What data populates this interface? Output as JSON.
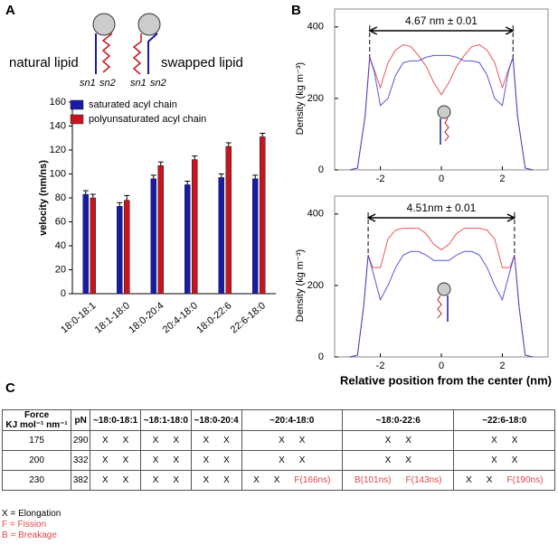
{
  "panels": {
    "a": "A",
    "b": "B",
    "c": "C"
  },
  "lipids": {
    "natural": "natural lipid",
    "swapped": "swapped lipid",
    "tails": [
      "sn1",
      "sn2",
      "sn1",
      "sn2"
    ]
  },
  "chart_data": [
    {
      "type": "bar",
      "y_label": "velocity (nm/ns)",
      "categories": [
        "18:0-18:1",
        "18:1-18:0",
        "18:0-20:4",
        "20:4-18:0",
        "18:0-22:6",
        "22:6-18:0"
      ],
      "series": [
        {
          "name": "saturated acyl chain",
          "color": "#1a1aa8",
          "values": [
            83,
            73,
            96,
            91,
            97,
            96
          ],
          "errors": [
            3,
            3,
            3,
            3,
            3,
            3
          ]
        },
        {
          "name": "polyunsaturated acyl chain",
          "color": "#c8141e",
          "values": [
            80,
            78,
            107,
            112,
            123,
            131
          ],
          "errors": [
            3,
            4,
            3,
            3,
            3,
            3
          ]
        }
      ],
      "ylim": [
        0,
        160
      ],
      "yticks": [
        0,
        20,
        40,
        60,
        80,
        100,
        120,
        140,
        160
      ]
    },
    {
      "type": "line",
      "y_label": "Density (kg m⁻³)",
      "annotation": "4.67 nm ± 0.01",
      "x": [
        -3,
        -2.75,
        -2.5,
        -2.35,
        -2.2,
        -2,
        -1.75,
        -1.5,
        -1.25,
        -1,
        -0.75,
        -0.5,
        -0.25,
        0,
        0.25,
        0.5,
        0.75,
        1,
        1.25,
        1.5,
        1.75,
        2,
        2.2,
        2.35,
        2.5,
        2.75,
        3
      ],
      "series": [
        {
          "color": "#e8383e",
          "values": [
            0,
            5,
            150,
            315,
            280,
            230,
            300,
            335,
            350,
            345,
            320,
            290,
            245,
            210,
            245,
            290,
            320,
            345,
            350,
            335,
            300,
            230,
            280,
            315,
            150,
            5,
            0
          ]
        },
        {
          "color": "#3a3ad0",
          "values": [
            0,
            5,
            150,
            315,
            275,
            180,
            200,
            265,
            300,
            305,
            305,
            315,
            320,
            320,
            320,
            315,
            305,
            305,
            300,
            265,
            200,
            180,
            275,
            315,
            150,
            5,
            0
          ]
        }
      ],
      "xlim": [
        -3.5,
        3.5
      ],
      "xticks": [
        -2,
        0,
        2
      ],
      "ylim": [
        0,
        450
      ],
      "yticks": [
        0,
        200,
        400
      ]
    },
    {
      "type": "line",
      "y_label": "Density (kg m⁻³)",
      "annotation": "4.51nm ± 0.01",
      "x_label": "Relative position from the center (nm)",
      "x": [
        -3,
        -2.75,
        -2.55,
        -2.4,
        -2.25,
        -2,
        -1.75,
        -1.5,
        -1.25,
        -1,
        -0.75,
        -0.5,
        -0.25,
        0,
        0.25,
        0.5,
        0.75,
        1,
        1.25,
        1.5,
        1.75,
        2,
        2.25,
        2.4,
        2.55,
        2.75,
        3
      ],
      "series": [
        {
          "color": "#e8383e",
          "values": [
            0,
            5,
            140,
            285,
            250,
            250,
            330,
            355,
            360,
            360,
            360,
            345,
            315,
            300,
            315,
            345,
            360,
            360,
            360,
            355,
            330,
            250,
            250,
            285,
            140,
            5,
            0
          ]
        },
        {
          "color": "#3a3ad0",
          "values": [
            0,
            5,
            140,
            285,
            240,
            160,
            200,
            250,
            285,
            295,
            295,
            285,
            270,
            270,
            270,
            285,
            295,
            295,
            285,
            250,
            200,
            160,
            240,
            285,
            140,
            5,
            0
          ]
        }
      ],
      "xlim": [
        -3.5,
        3.5
      ],
      "xticks": [
        -2,
        0,
        2
      ],
      "ylim": [
        0,
        450
      ],
      "yticks": [
        0,
        200,
        400
      ]
    }
  ],
  "table": {
    "force": "Force",
    "units": "KJ mol⁻¹ nm⁻¹",
    "pn": "pN",
    "groups": [
      "~18:0-18:1",
      "~18:1-18:0",
      "~18:0-20:4",
      "~20:4-18:0",
      "~18:0-22:6",
      "~22:6-18:0"
    ],
    "rows": [
      {
        "force": "175",
        "pn": "290",
        "cells": [
          [
            "X",
            "X"
          ],
          [
            "X",
            "X"
          ],
          [
            "X",
            "X"
          ],
          [
            "X",
            "X"
          ],
          [
            "X",
            "X"
          ],
          [
            "X",
            "X"
          ]
        ]
      },
      {
        "force": "200",
        "pn": "332",
        "cells": [
          [
            "X",
            "X"
          ],
          [
            "X",
            "X"
          ],
          [
            "X",
            "X"
          ],
          [
            "X",
            "X"
          ],
          [
            "X",
            "X"
          ],
          [
            "X",
            "X"
          ]
        ]
      },
      {
        "force": "230",
        "pn": "382",
        "cells": [
          [
            "X",
            "X"
          ],
          [
            "X",
            "X"
          ],
          [
            "X",
            "X"
          ],
          [
            "X",
            "X",
            "F(166ns)"
          ],
          [
            "B(101ns)",
            "F(143ns)"
          ],
          [
            "X",
            "X",
            "F(190ns)"
          ]
        ]
      }
    ]
  },
  "legend": [
    "X = Elongation",
    "F = Fission",
    "B = Breakage"
  ]
}
